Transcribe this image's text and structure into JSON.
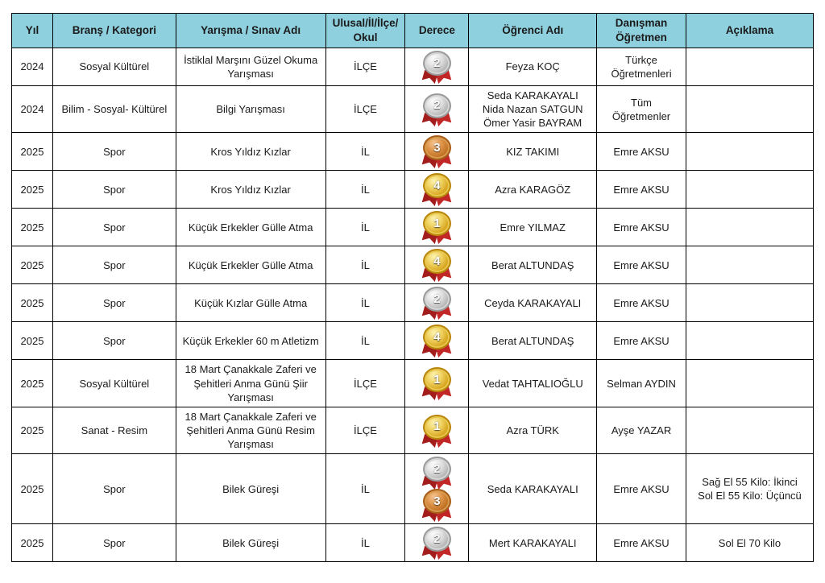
{
  "colors": {
    "header_bg": "#8ED0DE",
    "border": "#000000",
    "ribbon_red": "#B02121",
    "gold": "#D4A017",
    "silver": "#B5B5B5",
    "bronze": "#C07430"
  },
  "table": {
    "headers": [
      "Yıl",
      "Branş / Kategori",
      "Yarışma / Sınav Adı",
      "Ulusal/İl/İlçe/\nOkul",
      "Derece",
      "Öğrenci Adı",
      "Danışman Öğretmen",
      "Açıklama"
    ],
    "rows": [
      {
        "year": "2024",
        "category": "Sosyal Kültürel",
        "competition": "İstiklal Marşını Güzel Okuma Yarışması",
        "level": "İLÇE",
        "medals": [
          {
            "metal": "silver",
            "number": "2"
          }
        ],
        "students": "Feyza KOÇ",
        "advisor": "Türkçe Öğretmenleri",
        "note": ""
      },
      {
        "year": "2024",
        "category": "Bilim - Sosyal- Kültürel",
        "competition": "Bilgi Yarışması",
        "level": "İLÇE",
        "medals": [
          {
            "metal": "silver",
            "number": "2"
          }
        ],
        "students": "Seda KARAKAYALI\nNida Nazan SATGUN\nÖmer Yasir BAYRAM",
        "advisor": "Tüm Öğretmenler",
        "note": ""
      },
      {
        "year": "2025",
        "category": "Spor",
        "competition": "Kros Yıldız Kızlar",
        "level": "İL",
        "medals": [
          {
            "metal": "bronze",
            "number": "3"
          }
        ],
        "students": "KIZ TAKIMI",
        "advisor": "Emre AKSU",
        "note": ""
      },
      {
        "year": "2025",
        "category": "Spor",
        "competition": "Kros Yıldız Kızlar",
        "level": "İL",
        "medals": [
          {
            "metal": "gold",
            "number": "4"
          }
        ],
        "students": "Azra KARAGÖZ",
        "advisor": "Emre AKSU",
        "note": ""
      },
      {
        "year": "2025",
        "category": "Spor",
        "competition": "Küçük Erkekler Gülle Atma",
        "level": "İL",
        "medals": [
          {
            "metal": "gold",
            "number": "1"
          }
        ],
        "students": "Emre YILMAZ",
        "advisor": "Emre AKSU",
        "note": ""
      },
      {
        "year": "2025",
        "category": "Spor",
        "competition": "Küçük Erkekler Gülle Atma",
        "level": "İL",
        "medals": [
          {
            "metal": "gold",
            "number": "4"
          }
        ],
        "students": "Berat ALTUNDAŞ",
        "advisor": "Emre AKSU",
        "note": ""
      },
      {
        "year": "2025",
        "category": "Spor",
        "competition": "Küçük Kızlar Gülle Atma",
        "level": "İL",
        "medals": [
          {
            "metal": "silver",
            "number": "2"
          }
        ],
        "students": "Ceyda KARAKAYALI",
        "advisor": "Emre AKSU",
        "note": ""
      },
      {
        "year": "2025",
        "category": "Spor",
        "competition": "Küçük Erkekler 60 m Atletizm",
        "level": "İL",
        "medals": [
          {
            "metal": "gold",
            "number": "4"
          }
        ],
        "students": "Berat ALTUNDAŞ",
        "advisor": "Emre AKSU",
        "note": ""
      },
      {
        "year": "2025",
        "category": "Sosyal Kültürel",
        "competition": "18 Mart Çanakkale Zaferi ve Şehitleri Anma Günü Şiir Yarışması",
        "level": "İLÇE",
        "medals": [
          {
            "metal": "gold",
            "number": "1"
          }
        ],
        "students": "Vedat TAHTALIOĞLU",
        "advisor": "Selman AYDIN",
        "note": ""
      },
      {
        "year": "2025",
        "category": "Sanat - Resim",
        "competition": "18 Mart Çanakkale Zaferi ve Şehitleri Anma Günü Resim Yarışması",
        "level": "İLÇE",
        "medals": [
          {
            "metal": "gold",
            "number": "1"
          }
        ],
        "students": "Azra TÜRK",
        "advisor": "Ayşe YAZAR",
        "note": ""
      },
      {
        "year": "2025",
        "category": "Spor",
        "competition": "Bilek Güreşi",
        "level": "İL",
        "medals": [
          {
            "metal": "silver",
            "number": "2"
          },
          {
            "metal": "bronze",
            "number": "3"
          }
        ],
        "students": "Seda KARAKAYALI",
        "advisor": "Emre AKSU",
        "note": "Sağ El 55 Kilo: İkinci\nSol El 55 Kilo: Üçüncü"
      },
      {
        "year": "2025",
        "category": "Spor",
        "competition": "Bilek Güreşi",
        "level": "İL",
        "medals": [
          {
            "metal": "silver",
            "number": "2"
          }
        ],
        "students": "Mert KARAKAYALI",
        "advisor": "Emre AKSU",
        "note": "Sol El 70 Kilo"
      }
    ]
  }
}
